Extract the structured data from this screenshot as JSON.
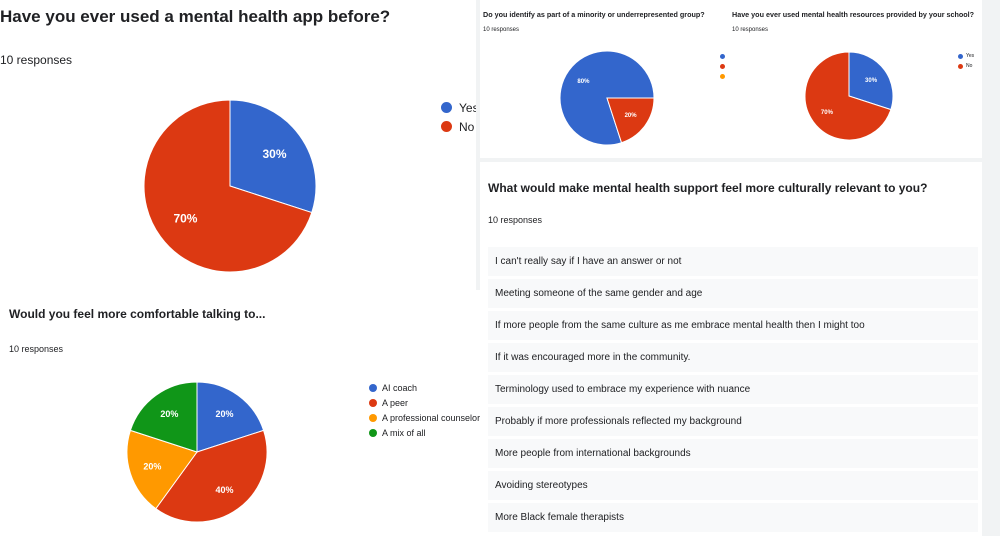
{
  "chart_data": [
    {
      "type": "pie",
      "title": "Have you ever used a mental health app before?",
      "responses_text": "10 responses",
      "categories": [
        "Yes",
        "No"
      ],
      "values": [
        30,
        70
      ],
      "labels": [
        "30%",
        "70%"
      ],
      "colors": [
        "#3366cc",
        "#dc3912"
      ],
      "legend_position": "right"
    },
    {
      "type": "pie",
      "title": "Would you feel more comfortable talking to...",
      "responses_text": "10 responses",
      "categories": [
        "AI coach",
        "A peer",
        "A professional counselor",
        "A mix of all"
      ],
      "values": [
        20,
        40,
        20,
        20
      ],
      "labels": [
        "20%",
        "40%",
        "20%",
        "20%"
      ],
      "colors": [
        "#3366cc",
        "#dc3912",
        "#ff9900",
        "#109618"
      ],
      "legend_position": "right"
    },
    {
      "type": "pie",
      "title": "Do you identify as part of a minority or underrepresented group?",
      "responses_text": "10 responses",
      "categories": [
        "",
        "",
        ""
      ],
      "values": [
        80,
        20,
        0
      ],
      "labels": [
        "80%",
        "20%",
        ""
      ],
      "colors": [
        "#3366cc",
        "#dc3912",
        "#ff9900"
      ],
      "legend_position": "right"
    },
    {
      "type": "pie",
      "title": "Have you ever used mental health resources provided by your school?",
      "responses_text": "10 responses",
      "categories": [
        "Yes",
        "No"
      ],
      "values": [
        30,
        70
      ],
      "labels": [
        "30%",
        "70%"
      ],
      "colors": [
        "#3366cc",
        "#dc3912"
      ],
      "legend_position": "right"
    }
  ],
  "text_question": {
    "title": "What would make mental health support feel more culturally relevant to you?",
    "responses_text": "10 responses",
    "answers": [
      "I can't really say if I have an answer or not",
      "Meeting someone of the same gender and age",
      "If more people from the same culture as me embrace mental health then I might too",
      "If it was encouraged more in the community.",
      "Terminology used to embrace my experience with nuance",
      "Probably if more professionals reflected my background",
      "More people from international backgrounds",
      "Avoiding stereotypes",
      "More Black female therapists"
    ]
  }
}
